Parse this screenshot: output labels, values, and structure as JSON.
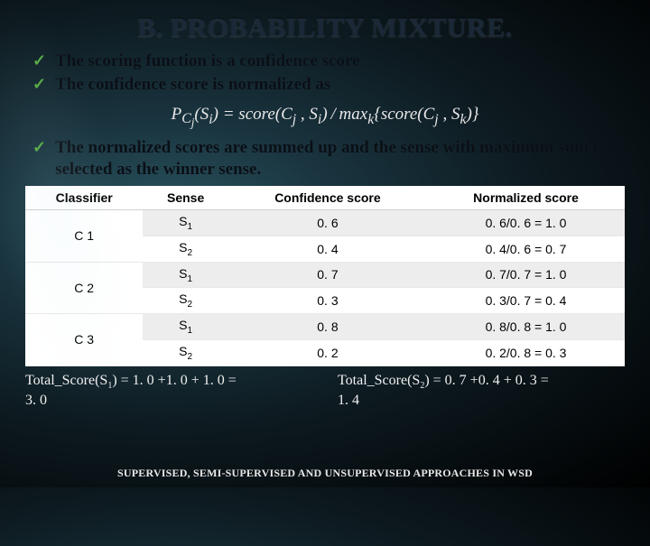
{
  "title": "B. PROBABILITY MIXTURE.",
  "bullets": {
    "b1": "The scoring function is a confidence score",
    "b2": "The confidence score is normalized as",
    "b3": "The normalized scores are summed up and the sense with maximum sum is selected as the winner sense."
  },
  "formula_html": "P<sub>C<sub>j</sub></sub>(S<sub>i</sub>) = score(C<sub>j</sub> , S<sub>i</sub>)&thinsp;/&thinsp;max<sub>k</sub>{score(C<sub>j</sub> , S<sub>k</sub>)}",
  "table": {
    "headers": {
      "h1": "Classifier",
      "h2": "Sense",
      "h3": "Confidence score",
      "h4": "Normalized score"
    },
    "rows": [
      {
        "classifier": "C 1",
        "sense": "S",
        "sense_sub": "1",
        "conf": "0. 6",
        "norm": "0. 6/0. 6 = 1. 0",
        "group": "a"
      },
      {
        "classifier": "",
        "sense": "S",
        "sense_sub": "2",
        "conf": "0. 4",
        "norm": "0. 4/0. 6 = 0. 7",
        "group": "b"
      },
      {
        "classifier": "C 2",
        "sense": "S",
        "sense_sub": "1",
        "conf": "0. 7",
        "norm": "0. 7/0. 7 = 1. 0",
        "group": "a"
      },
      {
        "classifier": "",
        "sense": "S",
        "sense_sub": "2",
        "conf": "0. 3",
        "norm": "0. 3/0. 7 = 0. 4",
        "group": "b"
      },
      {
        "classifier": "C 3",
        "sense": "S",
        "sense_sub": "1",
        "conf": "0. 8",
        "norm": "0. 8/0. 8 = 1. 0",
        "group": "a"
      },
      {
        "classifier": "",
        "sense": "S",
        "sense_sub": "2",
        "conf": "0. 2",
        "norm": "0. 2/0. 8 = 0. 3",
        "group": "b"
      }
    ]
  },
  "totals": {
    "t1a": "Total_Score(S",
    "t1sub": "1",
    "t1b": ") = 1. 0 +1. 0 + 1. 0 =",
    "t1c": "3. 0",
    "t2a": "Total_Score(S",
    "t2sub": "2",
    "t2b": ") = 0. 7 +0. 4 + 0. 3 =",
    "t2c": "1. 4"
  },
  "footer": "SUPERVISED, SEMI-SUPERVISED AND UNSUPERVISED APPROACHES IN WSD"
}
